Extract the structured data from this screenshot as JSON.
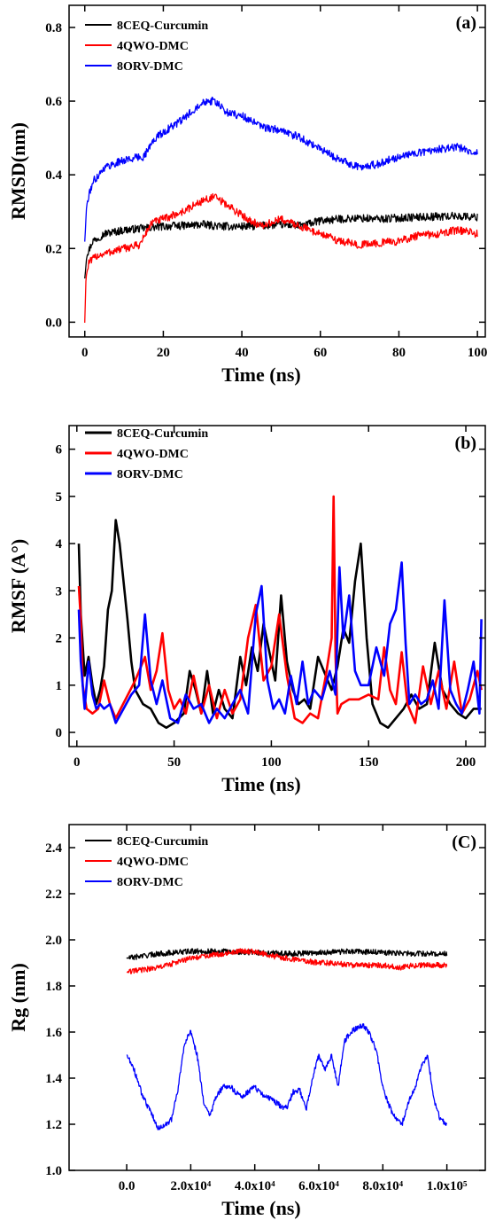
{
  "chart_data": [
    {
      "id": "a",
      "type": "line",
      "panel_label": "(a)",
      "xlabel": "Time (ns)",
      "ylabel": "RMSD(nm)",
      "xlim": [
        -4,
        102
      ],
      "ylim": [
        -0.04,
        0.86
      ],
      "xticks": [
        {
          "value": 0,
          "label": "0"
        },
        {
          "value": 20,
          "label": "20"
        },
        {
          "value": 40,
          "label": "40"
        },
        {
          "value": 60,
          "label": "60"
        },
        {
          "value": 80,
          "label": "80"
        },
        {
          "value": 100,
          "label": "100"
        }
      ],
      "yticks": [
        {
          "value": 0.0,
          "label": "0.0"
        },
        {
          "value": 0.2,
          "label": "0.2"
        },
        {
          "value": 0.4,
          "label": "0.4"
        },
        {
          "value": 0.6,
          "label": "0.6"
        },
        {
          "value": 0.8,
          "label": "0.8"
        }
      ],
      "legend_position": "top-left",
      "noise": true,
      "series": [
        {
          "name": "8CEQ-Curcumin",
          "color": "#000000",
          "x": [
            0,
            0.5,
            2,
            5,
            10,
            15,
            20,
            25,
            30,
            35,
            40,
            45,
            50,
            55,
            60,
            65,
            70,
            75,
            80,
            85,
            90,
            95,
            100
          ],
          "y": [
            0.12,
            0.18,
            0.22,
            0.24,
            0.25,
            0.255,
            0.26,
            0.262,
            0.265,
            0.26,
            0.26,
            0.262,
            0.265,
            0.262,
            0.275,
            0.28,
            0.282,
            0.28,
            0.283,
            0.285,
            0.287,
            0.288,
            0.285
          ]
        },
        {
          "name": "4QWO-DMC",
          "color": "#ff0000",
          "x": [
            0,
            0.3,
            1,
            3,
            8,
            14,
            17,
            20,
            25,
            30,
            33,
            36,
            40,
            45,
            50,
            55,
            60,
            65,
            70,
            75,
            80,
            85,
            90,
            95,
            100
          ],
          "y": [
            0.0,
            0.12,
            0.16,
            0.18,
            0.195,
            0.21,
            0.27,
            0.28,
            0.3,
            0.33,
            0.34,
            0.32,
            0.29,
            0.26,
            0.28,
            0.26,
            0.24,
            0.22,
            0.21,
            0.215,
            0.22,
            0.235,
            0.24,
            0.25,
            0.24
          ]
        },
        {
          "name": "8ORV-DMC",
          "color": "#0000ff",
          "x": [
            0,
            0.5,
            2,
            5,
            10,
            15,
            18,
            22,
            25,
            30,
            33,
            36,
            40,
            45,
            50,
            55,
            60,
            65,
            70,
            75,
            80,
            85,
            90,
            95,
            100
          ],
          "y": [
            0.22,
            0.32,
            0.38,
            0.42,
            0.44,
            0.45,
            0.5,
            0.53,
            0.55,
            0.6,
            0.6,
            0.57,
            0.56,
            0.53,
            0.52,
            0.5,
            0.47,
            0.44,
            0.42,
            0.43,
            0.45,
            0.46,
            0.47,
            0.475,
            0.46
          ]
        }
      ]
    },
    {
      "id": "b",
      "type": "line",
      "panel_label": "(b)",
      "xlabel": "Time (ns)",
      "ylabel": "RMSF (A°)",
      "xlim": [
        -4,
        210
      ],
      "ylim": [
        -0.3,
        6.5
      ],
      "xticks": [
        {
          "value": 0,
          "label": "0"
        },
        {
          "value": 50,
          "label": "50"
        },
        {
          "value": 100,
          "label": "100"
        },
        {
          "value": 150,
          "label": "150"
        },
        {
          "value": 200,
          "label": "200"
        }
      ],
      "yticks": [
        {
          "value": 0,
          "label": "0"
        },
        {
          "value": 1,
          "label": "1"
        },
        {
          "value": 2,
          "label": "2"
        },
        {
          "value": 3,
          "label": "3"
        },
        {
          "value": 4,
          "label": "4"
        },
        {
          "value": 5,
          "label": "5"
        },
        {
          "value": 6,
          "label": "6"
        }
      ],
      "legend_position": "top-left",
      "noise": false,
      "series": [
        {
          "name": "8CEQ-Curcumin",
          "color": "#000000",
          "x": [
            1,
            2,
            4,
            6,
            8,
            10,
            12,
            14,
            16,
            18,
            20,
            22,
            24,
            26,
            28,
            30,
            34,
            38,
            42,
            46,
            50,
            55,
            58,
            61,
            64,
            67,
            70,
            73,
            76,
            80,
            84,
            87,
            90,
            93,
            96,
            99,
            102,
            105,
            108,
            111,
            114,
            117,
            120,
            124,
            128,
            131,
            134,
            137,
            140,
            143,
            146,
            149,
            152,
            156,
            160,
            164,
            168,
            172,
            176,
            180,
            184,
            188,
            192,
            196,
            200,
            204,
            208
          ],
          "y": [
            4.0,
            2.5,
            1.2,
            1.6,
            1.0,
            0.6,
            0.9,
            1.4,
            2.6,
            3.0,
            4.5,
            4.0,
            3.2,
            2.4,
            1.5,
            0.9,
            0.6,
            0.5,
            0.2,
            0.1,
            0.2,
            0.4,
            1.3,
            0.9,
            0.4,
            1.3,
            0.4,
            0.9,
            0.5,
            0.3,
            1.6,
            1.0,
            1.8,
            1.3,
            2.3,
            1.7,
            1.1,
            2.9,
            1.5,
            0.9,
            0.6,
            0.7,
            0.5,
            1.6,
            1.2,
            0.9,
            1.4,
            2.2,
            1.9,
            3.2,
            4.0,
            2.0,
            0.6,
            0.2,
            0.1,
            0.3,
            0.5,
            0.8,
            0.5,
            0.6,
            1.9,
            0.9,
            0.6,
            0.4,
            0.3,
            0.5,
            0.5
          ]
        },
        {
          "name": "4QWO-DMC",
          "color": "#ff0000",
          "x": [
            1,
            2,
            3,
            5,
            8,
            11,
            14,
            17,
            20,
            25,
            30,
            35,
            38,
            41,
            44,
            47,
            50,
            53,
            56,
            60,
            64,
            68,
            72,
            76,
            80,
            84,
            88,
            92,
            96,
            100,
            104,
            108,
            112,
            116,
            120,
            124,
            128,
            131,
            132,
            133,
            134,
            136,
            140,
            145,
            150,
            155,
            158,
            161,
            164,
            167,
            170,
            174,
            178,
            182,
            186,
            190,
            194,
            198,
            202,
            206,
            208
          ],
          "y": [
            3.1,
            2.4,
            1.0,
            0.5,
            0.4,
            0.5,
            1.1,
            0.6,
            0.3,
            0.7,
            1.1,
            1.6,
            0.9,
            1.3,
            2.1,
            0.9,
            0.5,
            0.7,
            0.4,
            1.2,
            0.4,
            1.0,
            0.3,
            0.9,
            0.4,
            0.7,
            2.0,
            2.7,
            1.1,
            1.4,
            2.5,
            1.2,
            0.3,
            0.2,
            0.4,
            0.3,
            1.2,
            2.0,
            5.0,
            1.6,
            0.4,
            0.6,
            0.7,
            0.7,
            0.8,
            0.7,
            1.8,
            0.9,
            0.6,
            1.7,
            0.6,
            0.2,
            1.4,
            0.6,
            1.3,
            0.5,
            1.5,
            0.4,
            0.7,
            1.3,
            0.9
          ]
        },
        {
          "name": "8ORV-DMC",
          "color": "#0000ff",
          "x": [
            1,
            2,
            4,
            6,
            8,
            10,
            12,
            14,
            17,
            20,
            24,
            28,
            32,
            35,
            38,
            41,
            44,
            48,
            52,
            56,
            60,
            64,
            68,
            72,
            76,
            80,
            84,
            88,
            92,
            95,
            98,
            101,
            104,
            107,
            110,
            113,
            116,
            119,
            122,
            126,
            130,
            133,
            135,
            137,
            140,
            143,
            146,
            150,
            154,
            158,
            161,
            164,
            167,
            169,
            171,
            174,
            177,
            180,
            183,
            186,
            189,
            192,
            195,
            198,
            201,
            204,
            207,
            208
          ],
          "y": [
            2.6,
            1.5,
            0.5,
            1.5,
            0.8,
            0.5,
            0.6,
            0.5,
            0.6,
            0.2,
            0.5,
            0.8,
            1.0,
            2.5,
            1.1,
            0.6,
            1.1,
            0.3,
            0.2,
            0.8,
            0.5,
            0.6,
            0.2,
            0.5,
            0.3,
            0.6,
            0.9,
            0.4,
            2.5,
            3.1,
            1.1,
            0.5,
            0.7,
            0.4,
            1.2,
            0.6,
            1.5,
            0.6,
            0.9,
            0.7,
            1.3,
            0.8,
            3.5,
            2.0,
            2.9,
            1.3,
            1.0,
            1.0,
            1.8,
            1.2,
            2.3,
            2.6,
            3.6,
            1.9,
            0.6,
            0.8,
            0.6,
            0.7,
            1.1,
            0.5,
            2.8,
            0.9,
            0.6,
            0.4,
            0.9,
            1.5,
            0.4,
            2.4
          ]
        }
      ]
    },
    {
      "id": "c",
      "type": "line",
      "panel_label": "(C)",
      "xlabel": "Time (ns)",
      "ylabel": "Rg (nm)",
      "xlim": [
        -18000,
        112000
      ],
      "ylim": [
        1.0,
        2.5
      ],
      "xticks": [
        {
          "value": 0,
          "label": "0.0"
        },
        {
          "value": 20000,
          "label": "2.0x10⁴"
        },
        {
          "value": 40000,
          "label": "4.0x10⁴"
        },
        {
          "value": 60000,
          "label": "6.0x10⁴"
        },
        {
          "value": 80000,
          "label": "8.0x10⁴"
        },
        {
          "value": 100000,
          "label": "1.0x10⁵"
        }
      ],
      "yticks": [
        {
          "value": 1.0,
          "label": "1.0"
        },
        {
          "value": 1.2,
          "label": "1.2"
        },
        {
          "value": 1.4,
          "label": "1.4"
        },
        {
          "value": 1.6,
          "label": "1.6"
        },
        {
          "value": 1.8,
          "label": "1.8"
        },
        {
          "value": 2.0,
          "label": "2.0"
        },
        {
          "value": 2.2,
          "label": "2.2"
        },
        {
          "value": 2.4,
          "label": "2.4"
        }
      ],
      "legend_position": "top-left",
      "noise": true,
      "series": [
        {
          "name": "8CEQ-Curcumin",
          "color": "#000000",
          "x": [
            0,
            10000,
            20000,
            30000,
            40000,
            50000,
            60000,
            70000,
            80000,
            90000,
            100000
          ],
          "y": [
            1.92,
            1.94,
            1.95,
            1.95,
            1.945,
            1.94,
            1.945,
            1.95,
            1.945,
            1.94,
            1.94
          ]
        },
        {
          "name": "4QWO-DMC",
          "color": "#ff0000",
          "x": [
            0,
            5000,
            10000,
            15000,
            20000,
            25000,
            30000,
            35000,
            40000,
            45000,
            50000,
            55000,
            60000,
            65000,
            70000,
            75000,
            80000,
            85000,
            90000,
            95000,
            100000
          ],
          "y": [
            1.86,
            1.87,
            1.88,
            1.9,
            1.92,
            1.93,
            1.94,
            1.95,
            1.95,
            1.93,
            1.92,
            1.91,
            1.9,
            1.9,
            1.89,
            1.89,
            1.89,
            1.88,
            1.89,
            1.89,
            1.89
          ]
        },
        {
          "name": "8ORV-DMC",
          "color": "#0000ff",
          "x": [
            0,
            2000,
            5000,
            8000,
            10000,
            12000,
            14000,
            16000,
            18000,
            20000,
            22000,
            24000,
            26000,
            28000,
            30000,
            32000,
            34000,
            36000,
            38000,
            40000,
            42000,
            44000,
            46000,
            48000,
            50000,
            52000,
            54000,
            56000,
            58000,
            60000,
            62000,
            64000,
            66000,
            68000,
            70000,
            72000,
            74000,
            76000,
            78000,
            80000,
            82000,
            84000,
            86000,
            88000,
            90000,
            92000,
            94000,
            96000,
            98000,
            100000
          ],
          "y": [
            1.5,
            1.45,
            1.32,
            1.24,
            1.18,
            1.2,
            1.22,
            1.35,
            1.55,
            1.6,
            1.5,
            1.3,
            1.24,
            1.32,
            1.36,
            1.37,
            1.34,
            1.32,
            1.34,
            1.36,
            1.33,
            1.32,
            1.3,
            1.28,
            1.27,
            1.34,
            1.35,
            1.26,
            1.4,
            1.5,
            1.44,
            1.5,
            1.36,
            1.56,
            1.6,
            1.62,
            1.63,
            1.59,
            1.52,
            1.36,
            1.28,
            1.22,
            1.2,
            1.3,
            1.35,
            1.45,
            1.5,
            1.3,
            1.22,
            1.2
          ]
        }
      ]
    }
  ]
}
